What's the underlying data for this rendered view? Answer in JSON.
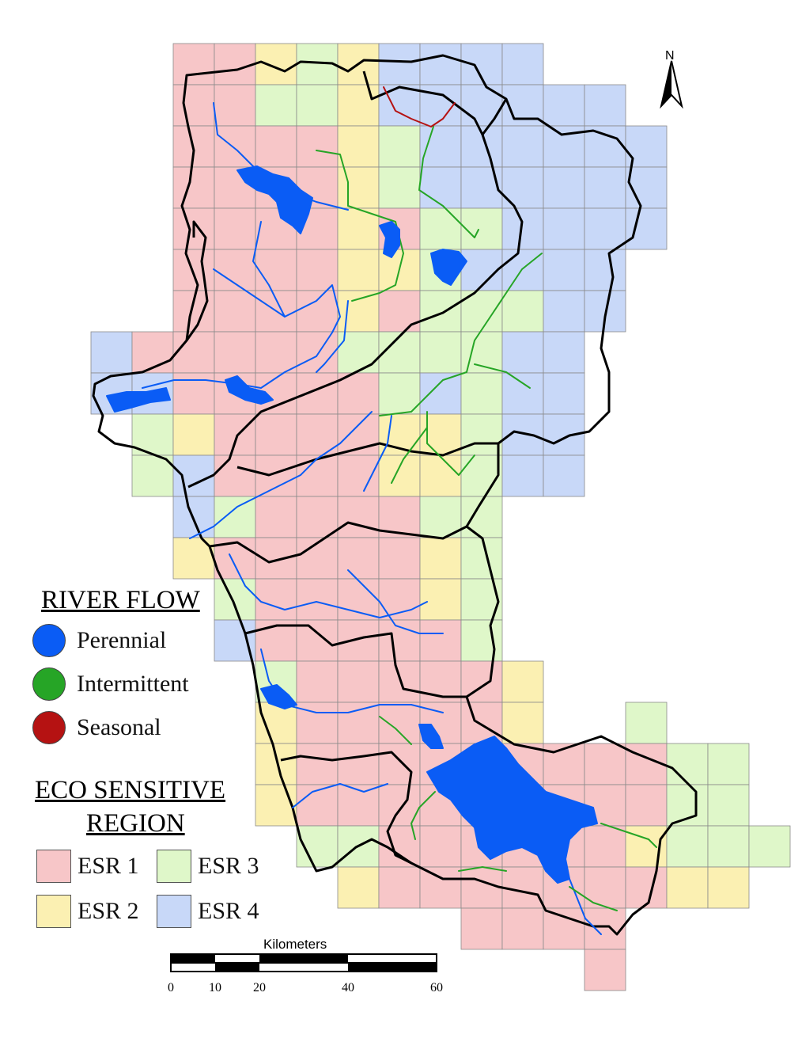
{
  "colors": {
    "esr1": "#f7c6c8",
    "esr2": "#fbf0b2",
    "esr3": "#dff7c9",
    "esr4": "#c8d8f8",
    "perennial": "#0a5cf5",
    "intermittent": "#26a526",
    "seasonal": "#b51212",
    "boundary": "#000000",
    "grid": "#8a8a8a"
  },
  "legend": {
    "river_flow_title": "RIVER FLOW",
    "flows": [
      {
        "label": "Perennial",
        "color": "#0a5cf5",
        "icon": "blue-circle-icon"
      },
      {
        "label": "Intermittent",
        "color": "#26a526",
        "icon": "green-circle-icon"
      },
      {
        "label": "Seasonal",
        "color": "#b51212",
        "icon": "red-circle-icon"
      }
    ],
    "esr_title_line1": "ECO SENSITIVE",
    "esr_title_line2": "REGION",
    "esr": [
      {
        "label": "ESR 1",
        "color": "#f7c6c8"
      },
      {
        "label": "ESR 3",
        "color": "#dff7c9"
      },
      {
        "label": "ESR 2",
        "color": "#fbf0b2"
      },
      {
        "label": "ESR 4",
        "color": "#c8d8f8"
      }
    ]
  },
  "north_arrow": {
    "label": "N"
  },
  "scale_bar": {
    "title": "Kilometers",
    "ticks": [
      "0",
      "10",
      "20",
      "40",
      "60"
    ]
  }
}
